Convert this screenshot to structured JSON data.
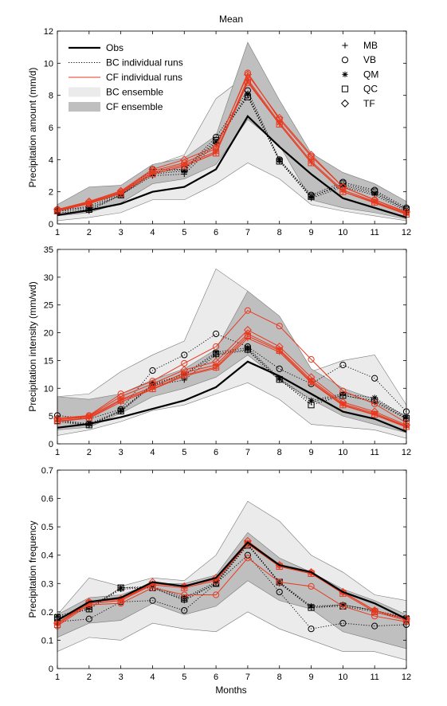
{
  "figure": {
    "title": "Mean",
    "xlabel": "Months",
    "legend_lines": [
      "Obs",
      "BC individual runs",
      "CF individual runs",
      "BC ensemble",
      "CF ensemble"
    ],
    "legend_markers": [
      {
        "name": "MB",
        "marker": "plus"
      },
      {
        "name": "VB",
        "marker": "circle"
      },
      {
        "name": "QM",
        "marker": "asterisk"
      },
      {
        "name": "QC",
        "marker": "square"
      },
      {
        "name": "TF",
        "marker": "diamond"
      }
    ],
    "colors": {
      "obs": "#000000",
      "cf": "#e8391f",
      "bc_band": "#ebebeb",
      "cf_band": "#bfbfbf",
      "band_edge": "#7a7a7a"
    }
  },
  "chart_data": [
    {
      "type": "line",
      "ylabel": "Precipitation amount (mm/d)",
      "xlim": [
        1,
        12
      ],
      "ylim": [
        0,
        12
      ],
      "xticks": [
        1,
        2,
        3,
        4,
        5,
        6,
        7,
        8,
        9,
        10,
        11,
        12
      ],
      "yticks": [
        0,
        2,
        4,
        6,
        8,
        10,
        12
      ],
      "obs": [
        0.55,
        0.85,
        1.25,
        2.0,
        2.3,
        3.4,
        6.7,
        4.8,
        3.1,
        1.6,
        1.0,
        0.4
      ],
      "bc_band": {
        "lower": [
          0.2,
          0.4,
          0.7,
          1.5,
          1.5,
          2.5,
          3.8,
          2.8,
          1.2,
          0.8,
          0.5,
          0.2
        ],
        "upper": [
          1.2,
          1.6,
          2.3,
          3.6,
          4.3,
          7.8,
          9.3,
          7.2,
          3.0,
          2.9,
          2.4,
          1.3
        ]
      },
      "cf_band": {
        "lower": [
          0.5,
          0.7,
          1.3,
          2.5,
          2.8,
          3.7,
          6.5,
          4.9,
          1.5,
          1.0,
          0.7,
          0.3
        ],
        "upper": [
          1.2,
          2.3,
          2.4,
          3.7,
          4.1,
          5.5,
          11.3,
          7.7,
          4.4,
          3.2,
          2.5,
          1.4
        ]
      },
      "bc_runs": [
        {
          "name": "MB",
          "marker": "plus",
          "values": [
            0.7,
            0.8,
            1.8,
            3.0,
            3.1,
            5.0,
            8.0,
            3.9,
            1.6,
            2.3,
            1.8,
            0.8
          ]
        },
        {
          "name": "VB",
          "marker": "circle",
          "values": [
            0.8,
            1.1,
            1.9,
            3.4,
            3.4,
            5.4,
            8.3,
            4.0,
            1.8,
            2.6,
            2.1,
            1.0
          ]
        },
        {
          "name": "QM",
          "marker": "asterisk",
          "values": [
            0.9,
            1.0,
            1.8,
            3.1,
            3.3,
            5.1,
            8.1,
            4.0,
            1.7,
            2.4,
            1.9,
            0.9
          ]
        },
        {
          "name": "QC",
          "marker": "square",
          "values": [
            0.8,
            0.9,
            1.8,
            3.2,
            3.4,
            5.2,
            7.9,
            3.9,
            1.7,
            2.5,
            2.0,
            0.9
          ]
        }
      ],
      "cf_runs": [
        {
          "name": "MB",
          "marker": "plus",
          "values": [
            0.85,
            1.3,
            1.9,
            3.1,
            3.6,
            4.4,
            8.9,
            6.2,
            3.8,
            2.0,
            1.3,
            0.6
          ]
        },
        {
          "name": "VB",
          "marker": "circle",
          "values": [
            0.9,
            1.35,
            2.0,
            3.3,
            3.8,
            4.7,
            9.4,
            6.5,
            4.2,
            2.3,
            1.5,
            0.7
          ]
        },
        {
          "name": "QM",
          "marker": "asterisk",
          "values": [
            0.85,
            1.3,
            1.95,
            3.2,
            3.7,
            4.5,
            9.0,
            6.3,
            3.9,
            2.1,
            1.4,
            0.65
          ]
        },
        {
          "name": "QC",
          "marker": "square",
          "values": [
            0.8,
            1.25,
            1.9,
            3.1,
            3.6,
            4.4,
            8.8,
            6.2,
            3.8,
            2.0,
            1.35,
            0.6
          ]
        },
        {
          "name": "TF",
          "marker": "diamond",
          "values": [
            0.9,
            1.4,
            2.05,
            3.4,
            4.0,
            4.8,
            9.3,
            6.6,
            4.3,
            2.3,
            1.5,
            0.75
          ]
        }
      ]
    },
    {
      "type": "line",
      "ylabel": "Precipitation intensity (mm/wd)",
      "xlim": [
        1,
        12
      ],
      "ylim": [
        0,
        35
      ],
      "xticks": [
        1,
        2,
        3,
        4,
        5,
        6,
        7,
        8,
        9,
        10,
        11,
        12
      ],
      "yticks": [
        0,
        5,
        10,
        15,
        20,
        25,
        30,
        35
      ],
      "obs": [
        2.9,
        3.6,
        4.8,
        6.3,
        7.8,
        10.2,
        14.8,
        12.2,
        9.0,
        5.8,
        4.5,
        2.2
      ],
      "bc_band": {
        "lower": [
          1.5,
          2.5,
          4.0,
          6.0,
          7.0,
          9.0,
          11.0,
          8.0,
          3.5,
          3.0,
          2.5,
          1.0
        ],
        "upper": [
          8.5,
          9.0,
          13.0,
          16.0,
          18.5,
          31.5,
          27.5,
          20.0,
          13.0,
          15.0,
          16.0,
          7.0
        ]
      },
      "cf_band": {
        "lower": [
          2.5,
          3.0,
          5.5,
          8.5,
          10.0,
          12.0,
          16.0,
          11.5,
          8.0,
          5.0,
          3.5,
          2.0
        ],
        "upper": [
          8.5,
          8.0,
          9.0,
          11.5,
          13.5,
          17.0,
          27.5,
          23.0,
          13.5,
          10.0,
          8.0,
          5.0
        ]
      },
      "bc_runs": [
        {
          "name": "MB",
          "marker": "plus",
          "values": [
            4.0,
            3.3,
            5.8,
            10.5,
            11.5,
            16.0,
            16.8,
            11.5,
            7.5,
            8.8,
            7.5,
            4.5
          ]
        },
        {
          "name": "VB",
          "marker": "circle",
          "values": [
            5.1,
            4.5,
            6.2,
            13.2,
            16.0,
            19.8,
            17.5,
            13.5,
            10.8,
            14.2,
            11.8,
            5.8
          ]
        },
        {
          "name": "QM",
          "marker": "asterisk",
          "values": [
            4.3,
            3.6,
            6.0,
            10.8,
            12.5,
            16.5,
            17.3,
            11.8,
            7.8,
            9.0,
            8.3,
            4.8
          ]
        },
        {
          "name": "QC",
          "marker": "square",
          "values": [
            4.2,
            3.4,
            5.9,
            10.6,
            12.3,
            16.2,
            17.0,
            11.6,
            7.0,
            8.7,
            7.8,
            4.6
          ]
        }
      ],
      "cf_runs": [
        {
          "name": "MB",
          "marker": "plus",
          "values": [
            4.0,
            4.6,
            7.5,
            9.8,
            12.2,
            13.6,
            19.0,
            16.5,
            11.0,
            6.9,
            5.2,
            3.0
          ]
        },
        {
          "name": "VB",
          "marker": "circle",
          "values": [
            4.6,
            5.1,
            9.0,
            11.3,
            14.5,
            17.5,
            24.0,
            21.2,
            15.2,
            9.5,
            7.2,
            3.8
          ]
        },
        {
          "name": "QM",
          "marker": "asterisk",
          "values": [
            4.3,
            4.9,
            8.0,
            10.2,
            12.8,
            14.2,
            19.8,
            17.0,
            11.5,
            7.2,
            5.5,
            3.2
          ]
        },
        {
          "name": "QC",
          "marker": "square",
          "values": [
            4.1,
            4.7,
            7.8,
            9.9,
            12.4,
            13.8,
            19.4,
            16.8,
            11.2,
            7.0,
            5.3,
            3.1
          ]
        },
        {
          "name": "TF",
          "marker": "diamond",
          "values": [
            4.5,
            5.0,
            8.5,
            10.8,
            13.3,
            14.8,
            20.5,
            17.5,
            12.0,
            7.5,
            5.8,
            3.4
          ]
        }
      ]
    },
    {
      "type": "line",
      "ylabel": "Precipitation frequency",
      "xlim": [
        1,
        12
      ],
      "ylim": [
        0,
        0.7
      ],
      "xticks": [
        1,
        2,
        3,
        4,
        5,
        6,
        7,
        8,
        9,
        10,
        11,
        12
      ],
      "yticks": [
        0,
        0.1,
        0.2,
        0.3,
        0.4,
        0.5,
        0.6,
        0.7
      ],
      "obs": [
        0.17,
        0.235,
        0.25,
        0.305,
        0.29,
        0.32,
        0.445,
        0.365,
        0.34,
        0.27,
        0.23,
        0.175
      ],
      "bc_band": {
        "lower": [
          0.06,
          0.11,
          0.1,
          0.16,
          0.14,
          0.13,
          0.2,
          0.14,
          0.1,
          0.06,
          0.06,
          0.03
        ],
        "upper": [
          0.19,
          0.32,
          0.29,
          0.32,
          0.31,
          0.4,
          0.59,
          0.52,
          0.4,
          0.34,
          0.26,
          0.24
        ]
      },
      "cf_band": {
        "lower": [
          0.11,
          0.16,
          0.17,
          0.23,
          0.19,
          0.22,
          0.31,
          0.24,
          0.21,
          0.13,
          0.1,
          0.07
        ],
        "upper": [
          0.19,
          0.25,
          0.26,
          0.3,
          0.3,
          0.33,
          0.48,
          0.39,
          0.34,
          0.28,
          0.24,
          0.19
        ]
      },
      "bc_runs": [
        {
          "name": "MB",
          "marker": "plus",
          "values": [
            0.18,
            0.21,
            0.28,
            0.285,
            0.24,
            0.3,
            0.44,
            0.3,
            0.215,
            0.225,
            0.205,
            0.175
          ]
        },
        {
          "name": "VB",
          "marker": "circle",
          "values": [
            0.165,
            0.175,
            0.235,
            0.24,
            0.205,
            0.3,
            0.4,
            0.27,
            0.14,
            0.16,
            0.15,
            0.155
          ]
        },
        {
          "name": "QM",
          "marker": "asterisk",
          "values": [
            0.185,
            0.215,
            0.285,
            0.29,
            0.25,
            0.305,
            0.44,
            0.305,
            0.22,
            0.225,
            0.205,
            0.18
          ]
        },
        {
          "name": "QC",
          "marker": "square",
          "values": [
            0.18,
            0.21,
            0.285,
            0.285,
            0.245,
            0.3,
            0.435,
            0.305,
            0.215,
            0.22,
            0.2,
            0.175
          ]
        }
      ],
      "cf_runs": [
        {
          "name": "MB",
          "marker": "plus",
          "values": [
            0.16,
            0.23,
            0.24,
            0.3,
            0.29,
            0.315,
            0.44,
            0.36,
            0.335,
            0.27,
            0.205,
            0.175
          ]
        },
        {
          "name": "VB",
          "marker": "circle",
          "values": [
            0.15,
            0.225,
            0.23,
            0.285,
            0.26,
            0.26,
            0.39,
            0.305,
            0.29,
            0.22,
            0.185,
            0.165
          ]
        },
        {
          "name": "QM",
          "marker": "asterisk",
          "values": [
            0.16,
            0.235,
            0.245,
            0.3,
            0.29,
            0.315,
            0.445,
            0.365,
            0.34,
            0.27,
            0.205,
            0.175
          ]
        },
        {
          "name": "QC",
          "marker": "square",
          "values": [
            0.155,
            0.23,
            0.24,
            0.295,
            0.285,
            0.31,
            0.44,
            0.36,
            0.335,
            0.265,
            0.2,
            0.17
          ]
        },
        {
          "name": "TF",
          "marker": "diamond",
          "values": [
            0.16,
            0.235,
            0.245,
            0.305,
            0.29,
            0.32,
            0.45,
            0.365,
            0.34,
            0.27,
            0.205,
            0.175
          ]
        }
      ]
    }
  ]
}
